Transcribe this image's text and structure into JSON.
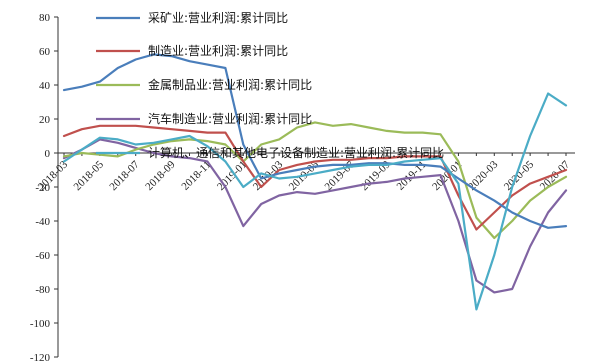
{
  "chart_data": {
    "type": "line",
    "title": "",
    "xlabel": "",
    "ylabel": "",
    "ylim": [
      -120,
      80
    ],
    "yticks": [
      80,
      60,
      40,
      20,
      0,
      -20,
      -40,
      -60,
      -80,
      -100,
      -120
    ],
    "x": [
      "2018-03",
      "2018-04",
      "2018-05",
      "2018-06",
      "2018-07",
      "2018-08",
      "2018-09",
      "2018-10",
      "2018-11",
      "2018-12",
      "2019-01",
      "2019-02",
      "2019-03",
      "2019-04",
      "2019-05",
      "2019-06",
      "2019-07",
      "2019-08",
      "2019-09",
      "2019-10",
      "2019-11",
      "2019-12",
      "2020-01",
      "2020-02",
      "2020-03",
      "2020-04",
      "2020-05",
      "2020-06",
      "2020-07"
    ],
    "x_tick_labels": [
      "2018-03",
      "2018-05",
      "2018-07",
      "2018-09",
      "2018-11",
      "2019-01",
      "2019-03",
      "2019-05",
      "2019-07",
      "2019-09",
      "2019-11",
      "2020-01",
      "2020-03",
      "2020-05",
      "2020-07"
    ],
    "legend_placement": "top-center",
    "grid": false,
    "series": [
      {
        "name": "采矿业:营业利润:累计同比",
        "color": "#4a7ebb",
        "values": [
          37,
          39,
          42,
          50,
          55,
          58,
          57,
          54,
          52,
          50,
          5,
          -15,
          -12,
          -10,
          -8,
          -7,
          -7,
          -6,
          -6,
          -7,
          -7,
          -8,
          -15,
          -22,
          -28,
          -35,
          -40,
          -44,
          -43
        ]
      },
      {
        "name": "制造业:营业利润:累计同比",
        "color": "#c0504d",
        "values": [
          10,
          14,
          16,
          16,
          16,
          15,
          14,
          13,
          12,
          12,
          -5,
          -20,
          -10,
          -7,
          -5,
          -4,
          -4,
          -3,
          -3,
          -2,
          -2,
          -2,
          -25,
          -45,
          -35,
          -25,
          -18,
          -14,
          -10
        ]
      },
      {
        "name": "金属制品业:营业利润:累计同比",
        "color": "#9bbb59",
        "values": [
          -2,
          0,
          -1,
          -2,
          2,
          5,
          7,
          8,
          7,
          5,
          -5,
          5,
          8,
          15,
          18,
          16,
          17,
          15,
          13,
          12,
          12,
          11,
          -5,
          -38,
          -50,
          -40,
          -28,
          -20,
          -14
        ]
      },
      {
        "name": "汽车制造业:营业利润:累计同比",
        "color": "#8064a2",
        "values": [
          -3,
          2,
          8,
          6,
          3,
          0,
          -2,
          -3,
          -5,
          -20,
          -43,
          -30,
          -25,
          -23,
          -24,
          -22,
          -20,
          -18,
          -17,
          -15,
          -14,
          -13,
          -40,
          -75,
          -82,
          -80,
          -55,
          -35,
          -22
        ]
      },
      {
        "name": "计算机、通信和其他电子设备制造业:营业利润:累计同比",
        "color": "#4bacc6",
        "values": [
          -5,
          2,
          9,
          8,
          5,
          6,
          8,
          10,
          4,
          -5,
          -20,
          -12,
          -15,
          -14,
          -12,
          -10,
          -8,
          -7,
          -7,
          -5,
          -4,
          -3,
          -18,
          -92,
          -60,
          -20,
          10,
          35,
          28
        ]
      }
    ]
  }
}
